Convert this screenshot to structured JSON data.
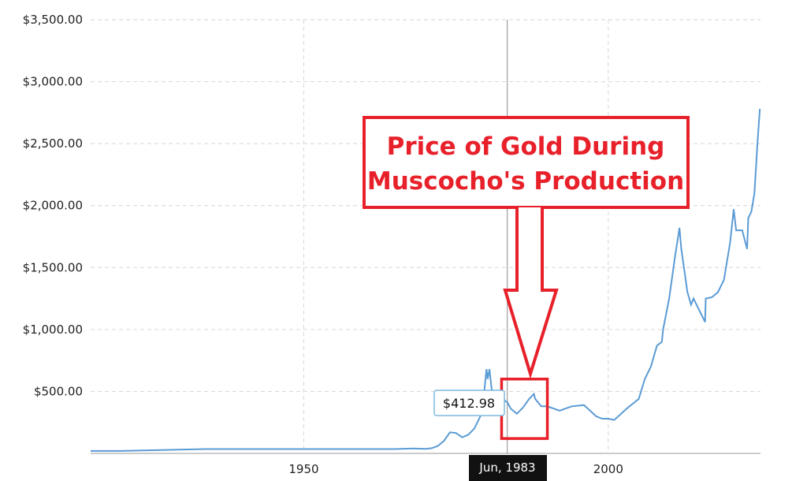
{
  "chart_data": {
    "type": "line",
    "title": "",
    "xlabel": "",
    "ylabel": "",
    "ylim": [
      0,
      3500
    ],
    "xlim": [
      1915,
      2025
    ],
    "y_ticks": [
      {
        "value": 500,
        "label": "$500.00"
      },
      {
        "value": 1000,
        "label": "$1,000.00"
      },
      {
        "value": 1500,
        "label": "$1,500.00"
      },
      {
        "value": 2000,
        "label": "$2,000.00"
      },
      {
        "value": 2500,
        "label": "$2,500.00"
      },
      {
        "value": 3000,
        "label": "$3,000.00"
      },
      {
        "value": 3500,
        "label": "$3,500.00"
      }
    ],
    "x_ticks": [
      {
        "value": 1950,
        "label": "1950"
      },
      {
        "value": 2000,
        "label": "2000"
      }
    ],
    "x_gridlines": [
      1950,
      1983.42,
      2000
    ],
    "grid": true,
    "series_color": "#5b9bd5",
    "series": [
      {
        "x": [
          1915,
          1920,
          1934,
          1935,
          1940,
          1950,
          1960,
          1965,
          1968,
          1970,
          1971,
          1972,
          1973,
          1974,
          1975,
          1976,
          1977,
          1978,
          1979,
          1979.5,
          1980,
          1980.2,
          1980.5,
          1981,
          1982,
          1982.5,
          1983,
          1983.42,
          1984,
          1985,
          1986,
          1987,
          1987.8,
          1988,
          1989,
          1990,
          1992,
          1994,
          1996,
          1998,
          1999,
          2000,
          2001,
          2003,
          2005,
          2006,
          2007,
          2008,
          2008.8,
          2009,
          2010,
          2011,
          2011.7,
          2012,
          2013,
          2013.6,
          2014,
          2015,
          2015.9,
          2016,
          2017,
          2018,
          2019,
          2020,
          2020.6,
          2021,
          2022,
          2022.8,
          2023,
          2023.5,
          2024,
          2024.5,
          2024.9
        ],
        "y": [
          20,
          20,
          35,
          35,
          35,
          35,
          35,
          35,
          40,
          37,
          42,
          60,
          100,
          170,
          165,
          130,
          150,
          200,
          300,
          430,
          680,
          600,
          680,
          450,
          380,
          480,
          425,
          412.98,
          360,
          320,
          370,
          440,
          480,
          440,
          380,
          380,
          345,
          380,
          390,
          300,
          280,
          280,
          270,
          360,
          440,
          600,
          700,
          870,
          900,
          1000,
          1250,
          1600,
          1820,
          1650,
          1300,
          1200,
          1250,
          1150,
          1060,
          1250,
          1260,
          1300,
          1400,
          1700,
          1970,
          1800,
          1800,
          1650,
          1900,
          1950,
          2100,
          2500,
          2780
        ]
      }
    ],
    "annotations": {
      "callout_line1": "Price of Gold During",
      "callout_line2": "Muscocho's Production",
      "tooltip_value": "$412.98",
      "crosshair_label": "Jun, 1983"
    },
    "highlight_range": {
      "x": [
        1983,
        1990
      ],
      "y": [
        120,
        600
      ]
    },
    "callout_color": "#e8202a"
  }
}
